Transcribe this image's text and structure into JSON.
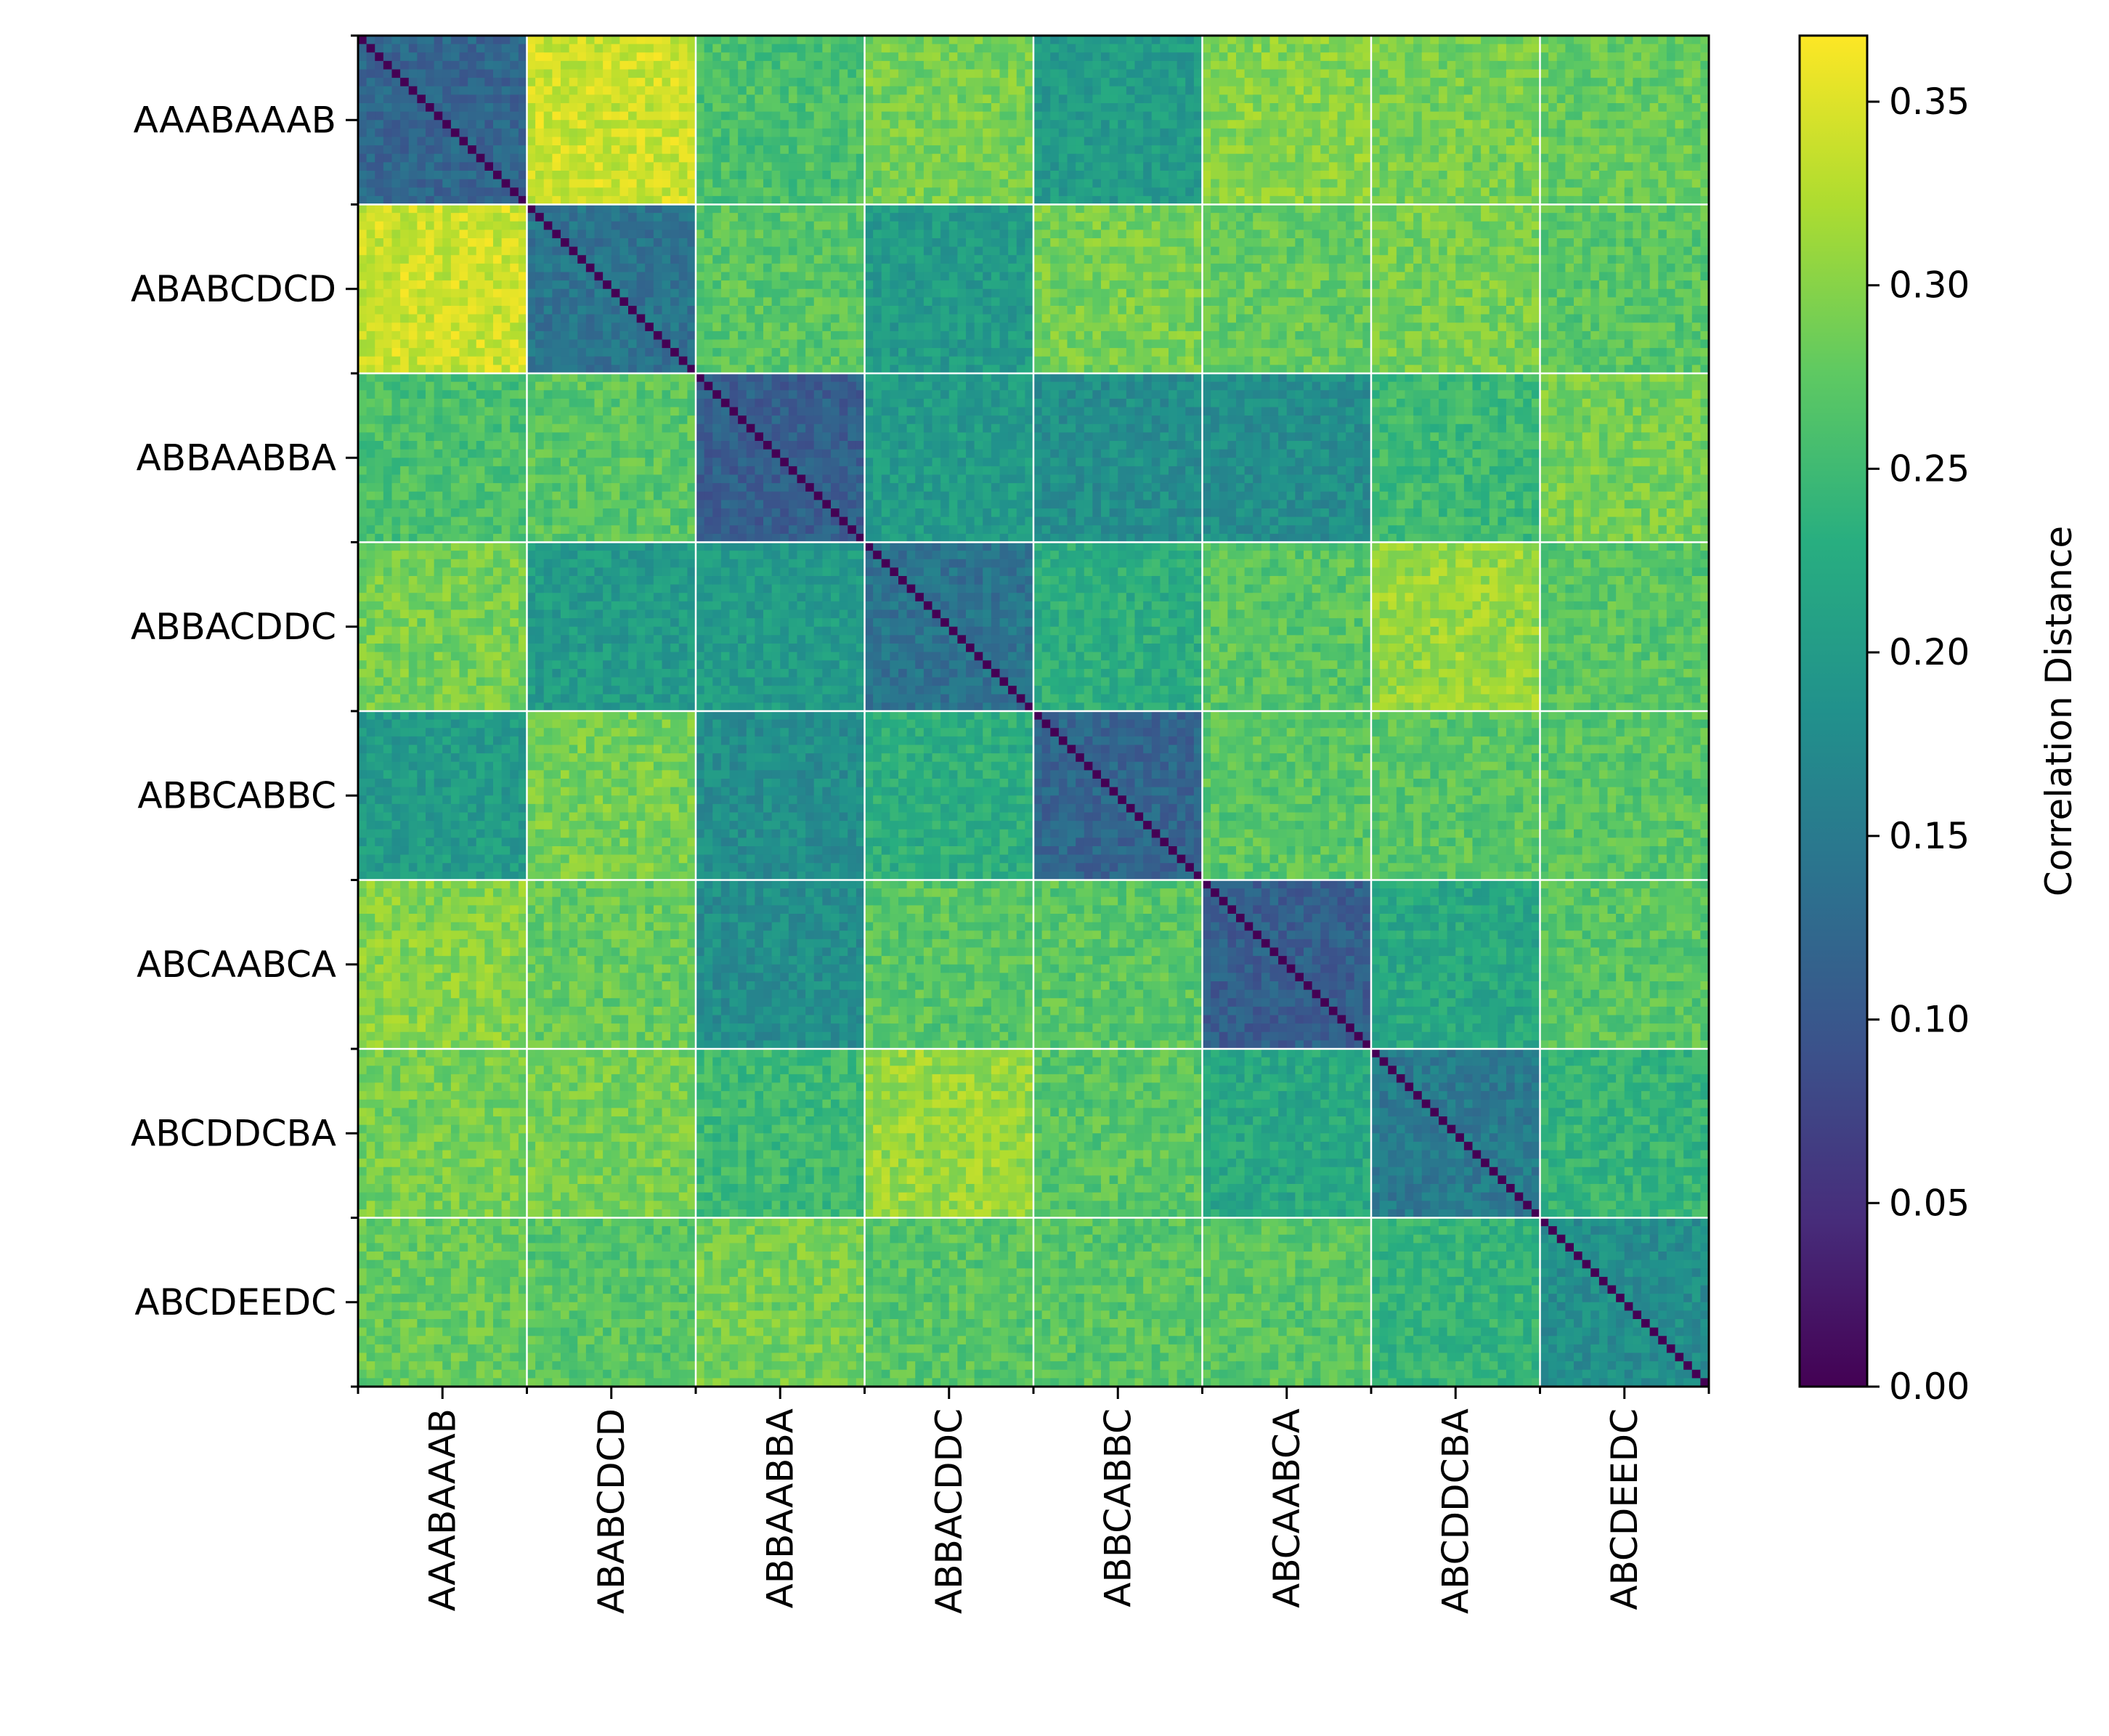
{
  "chart_data": {
    "type": "heatmap",
    "title": "",
    "xlabel": "",
    "ylabel": "",
    "categories": [
      "AAABAAAB",
      "ABABCDCD",
      "ABBAABBA",
      "ABBACDDC",
      "ABBCABBC",
      "ABCAABCA",
      "ABCDDCBA",
      "ABCDEEDC"
    ],
    "items_per_category": 20,
    "diagonal_value": 0.0,
    "values": [
      [
        0.12,
        0.34,
        0.26,
        0.29,
        0.2,
        0.3,
        0.29,
        0.28
      ],
      [
        0.34,
        0.14,
        0.27,
        0.2,
        0.29,
        0.28,
        0.29,
        0.27
      ],
      [
        0.26,
        0.27,
        0.11,
        0.2,
        0.18,
        0.18,
        0.25,
        0.29
      ],
      [
        0.29,
        0.2,
        0.2,
        0.14,
        0.23,
        0.27,
        0.31,
        0.27
      ],
      [
        0.2,
        0.29,
        0.18,
        0.23,
        0.12,
        0.27,
        0.27,
        0.27
      ],
      [
        0.3,
        0.28,
        0.18,
        0.27,
        0.27,
        0.11,
        0.22,
        0.27
      ],
      [
        0.29,
        0.29,
        0.25,
        0.31,
        0.27,
        0.22,
        0.15,
        0.24
      ],
      [
        0.28,
        0.27,
        0.29,
        0.27,
        0.27,
        0.27,
        0.24,
        0.18
      ]
    ],
    "colorbar": {
      "label": "Correlation Distance",
      "colormap": "viridis",
      "range": [
        0.0,
        0.368
      ],
      "ticks": [
        0.0,
        0.05,
        0.1,
        0.15,
        0.2,
        0.25,
        0.3,
        0.35
      ],
      "tick_labels": [
        "0.00",
        "0.05",
        "0.10",
        "0.15",
        "0.20",
        "0.25",
        "0.30",
        "0.35"
      ]
    },
    "block_separators": true,
    "x_tick_rotation": "vertical"
  }
}
